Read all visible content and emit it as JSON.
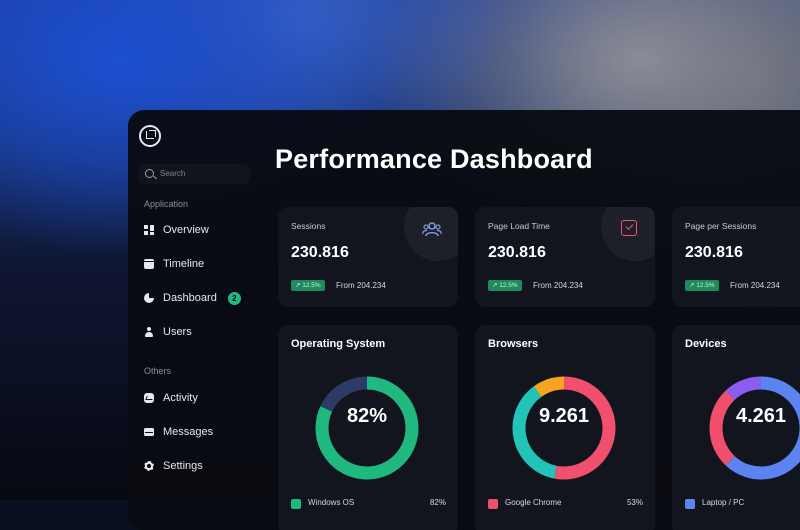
{
  "page": {
    "title": "Performance Dashboard"
  },
  "sidebar": {
    "search_placeholder": "Search",
    "sections": [
      {
        "label": "Application"
      },
      {
        "label": "Others"
      }
    ],
    "items": [
      {
        "label": "Overview",
        "icon": "grid-icon"
      },
      {
        "label": "Timeline",
        "icon": "calendar-icon"
      },
      {
        "label": "Dashboard",
        "icon": "pie-chart-icon",
        "badge": "2"
      },
      {
        "label": "Users",
        "icon": "user-icon"
      },
      {
        "label": "Activity",
        "icon": "activity-icon"
      },
      {
        "label": "Messages",
        "icon": "mail-icon"
      },
      {
        "label": "Settings",
        "icon": "gear-icon"
      }
    ]
  },
  "stats": [
    {
      "label": "Sessions",
      "value": "230.816",
      "trend": "↗ 12.5%",
      "from": "From 204.234",
      "icon": "users-icon"
    },
    {
      "label": "Page Load Time",
      "value": "230.816",
      "trend": "↗ 12.5%",
      "from": "From 204.234",
      "icon": "check-square-icon"
    },
    {
      "label": "Page  per Sessions",
      "value": "230.816",
      "trend": "↗ 12.5%",
      "from": "From 204.234",
      "icon": ""
    }
  ],
  "colors": {
    "green": "#1fb980",
    "navy": "#2b3a66",
    "red": "#f0506e",
    "teal": "#22c3b8",
    "orange": "#f5a51d",
    "blue": "#5b84f0",
    "purple": "#8a5cf0"
  },
  "chart_data": [
    {
      "type": "pie",
      "title": "Operating System",
      "center_label": "82%",
      "slices": [
        {
          "label": "Windows OS",
          "value": 82,
          "color": "#1fb980"
        },
        {
          "label": "",
          "value": 18,
          "color": "#2b3a66"
        }
      ],
      "legend": [
        {
          "label": "Windows OS",
          "value": "82%",
          "color": "#1fb980"
        }
      ]
    },
    {
      "type": "pie",
      "title": "Browsers",
      "center_label": "9.261",
      "slices": [
        {
          "label": "Google Chrome",
          "value": 53,
          "color": "#f0506e"
        },
        {
          "label": "",
          "value": 37,
          "color": "#22c3b8"
        },
        {
          "label": "",
          "value": 10,
          "color": "#f5a51d"
        }
      ],
      "legend": [
        {
          "label": "Google Chrome",
          "value": "53%",
          "color": "#f0506e"
        }
      ]
    },
    {
      "type": "pie",
      "title": "Devices",
      "center_label": "4.261",
      "slices": [
        {
          "label": "Laptop / PC",
          "value": 62,
          "color": "#5b84f0"
        },
        {
          "label": "",
          "value": 26,
          "color": "#f0506e"
        },
        {
          "label": "",
          "value": 12,
          "color": "#8a5cf0"
        }
      ],
      "legend": [
        {
          "label": "Laptop / PC",
          "value": "",
          "color": "#5b84f0"
        }
      ]
    }
  ]
}
